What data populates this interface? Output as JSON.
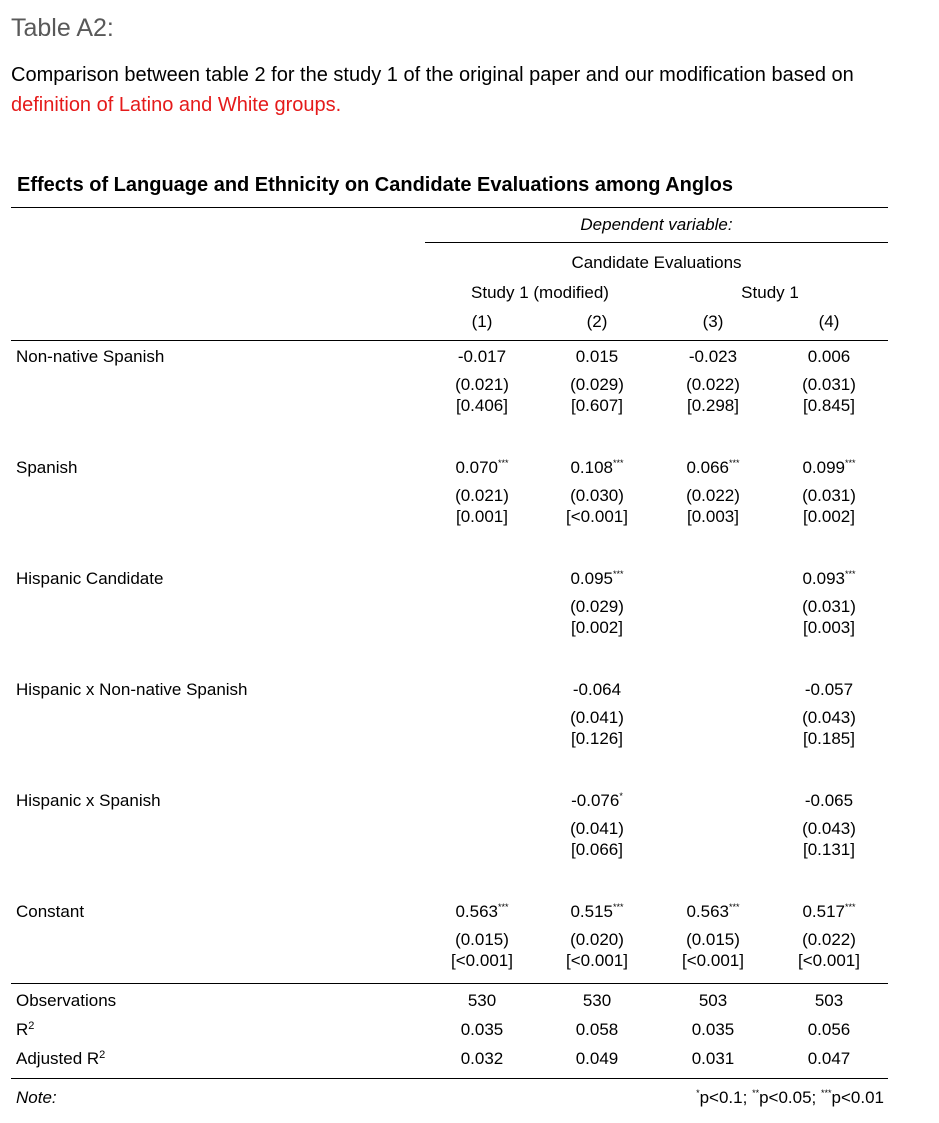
{
  "caption": {
    "label": "Table A2:",
    "text_before": "Comparison between table 2 for the study 1 of the original paper and our modification based on ",
    "text_highlight": "definition of Latino and White groups.",
    "highlight_color": "#e51a1a"
  },
  "table": {
    "title": "Effects of Language and Ethnicity on Candidate Evaluations among Anglos",
    "dependent_variable_label": "Dependent variable:",
    "dependent_variable": "Candidate Evaluations",
    "groups": [
      "Study 1 (modified)",
      "Study 1"
    ],
    "column_numbers": [
      "(1)",
      "(2)",
      "(3)",
      "(4)"
    ],
    "rows": [
      {
        "label": "Non-native Spanish",
        "coef": [
          "-0.017",
          "0.015",
          "-0.023",
          "0.006"
        ],
        "stars": [
          "",
          "",
          "",
          ""
        ],
        "se": [
          "(0.021)",
          "(0.029)",
          "(0.022)",
          "(0.031)"
        ],
        "p": [
          "[0.406]",
          "[0.607]",
          "[0.298]",
          "[0.845]"
        ]
      },
      {
        "label": "Spanish",
        "coef": [
          "0.070",
          "0.108",
          "0.066",
          "0.099"
        ],
        "stars": [
          "***",
          "***",
          "***",
          "***"
        ],
        "se": [
          "(0.021)",
          "(0.030)",
          "(0.022)",
          "(0.031)"
        ],
        "p": [
          "[0.001]",
          "[<0.001]",
          "[0.003]",
          "[0.002]"
        ]
      },
      {
        "label": "Hispanic Candidate",
        "coef": [
          "",
          "0.095",
          "",
          "0.093"
        ],
        "stars": [
          "",
          "***",
          "",
          "***"
        ],
        "se": [
          "",
          "(0.029)",
          "",
          "(0.031)"
        ],
        "p": [
          "",
          "[0.002]",
          "",
          "[0.003]"
        ]
      },
      {
        "label": "Hispanic x Non-native Spanish",
        "coef": [
          "",
          "-0.064",
          "",
          "-0.057"
        ],
        "stars": [
          "",
          "",
          "",
          ""
        ],
        "se": [
          "",
          "(0.041)",
          "",
          "(0.043)"
        ],
        "p": [
          "",
          "[0.126]",
          "",
          "[0.185]"
        ]
      },
      {
        "label": "Hispanic x Spanish",
        "coef": [
          "",
          "-0.076",
          "",
          "-0.065"
        ],
        "stars": [
          "",
          "*",
          "",
          ""
        ],
        "se": [
          "",
          "(0.041)",
          "",
          "(0.043)"
        ],
        "p": [
          "",
          "[0.066]",
          "",
          "[0.131]"
        ]
      },
      {
        "label": "Constant",
        "coef": [
          "0.563",
          "0.515",
          "0.563",
          "0.517"
        ],
        "stars": [
          "***",
          "***",
          "***",
          "***"
        ],
        "se": [
          "(0.015)",
          "(0.020)",
          "(0.015)",
          "(0.022)"
        ],
        "p": [
          "[<0.001]",
          "[<0.001]",
          "[<0.001]",
          "[<0.001]"
        ]
      }
    ],
    "stats": [
      {
        "label": "Observations",
        "sup": "",
        "values": [
          "530",
          "530",
          "503",
          "503"
        ]
      },
      {
        "label": "R",
        "sup": "2",
        "values": [
          "0.035",
          "0.058",
          "0.035",
          "0.056"
        ]
      },
      {
        "label": "Adjusted R",
        "sup": "2",
        "values": [
          "0.032",
          "0.049",
          "0.031",
          "0.047"
        ]
      }
    ],
    "note_label": "Note:",
    "significance": [
      {
        "stars": "*",
        "text": "p<0.1; "
      },
      {
        "stars": "**",
        "text": "p<0.05; "
      },
      {
        "stars": "***",
        "text": "p<0.01"
      }
    ]
  }
}
